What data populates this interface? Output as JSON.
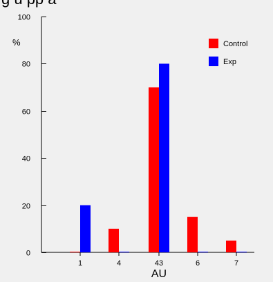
{
  "title_partial": "g          u    pp    a    ",
  "chart_data": {
    "type": "bar",
    "title": "",
    "xlabel": "AU",
    "ylabel": "%",
    "categories": [
      "1",
      "4",
      "43",
      "6",
      "7"
    ],
    "series": [
      {
        "name": "Control",
        "color": "#ff0000",
        "values": [
          0,
          10,
          70,
          15,
          5
        ]
      },
      {
        "name": "Exp",
        "color": "#0000ff",
        "values": [
          20,
          0,
          80,
          0,
          0
        ]
      }
    ],
    "ylim": [
      0,
      100
    ],
    "yticks": [
      0,
      20,
      40,
      60,
      80,
      100
    ],
    "grid": false,
    "legend_position": "top-right"
  }
}
